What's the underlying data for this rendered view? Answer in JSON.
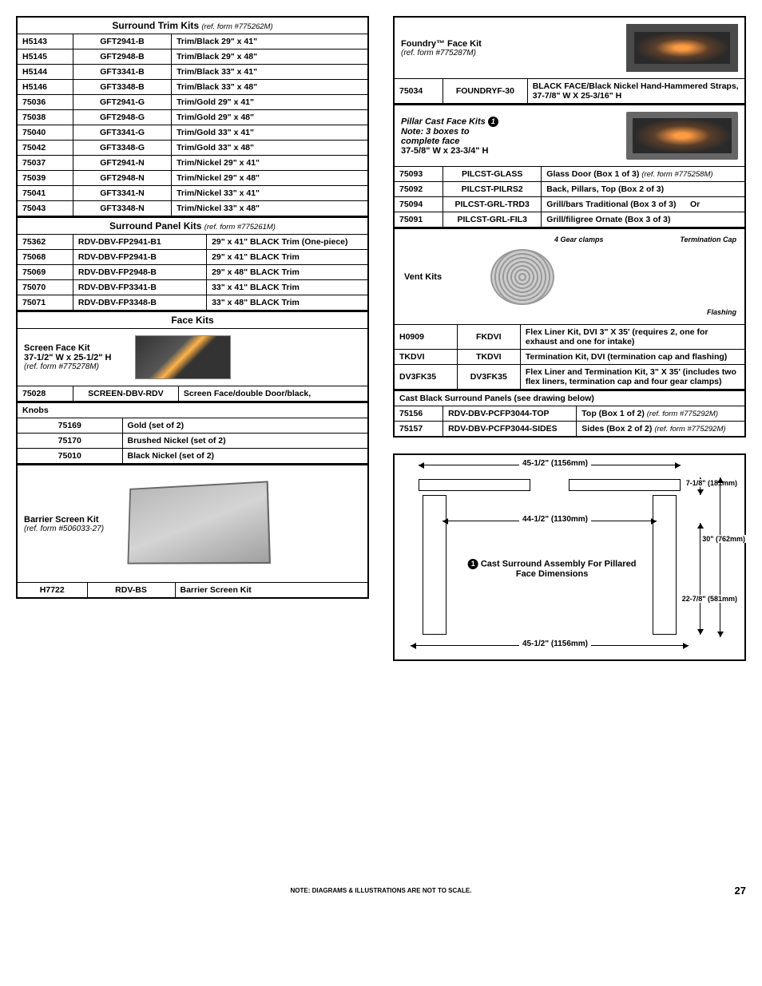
{
  "left": {
    "surround_trim": {
      "header": "Surround Trim Kits",
      "header_ref": "(ref. form #775262M)",
      "rows": [
        {
          "c0": "H5143",
          "c1": "GFT2941-B",
          "c2": "Trim/Black 29\" x 41\""
        },
        {
          "c0": "H5145",
          "c1": "GFT2948-B",
          "c2": "Trim/Black 29\" x 48\""
        },
        {
          "c0": "H5144",
          "c1": "GFT3341-B",
          "c2": "Trim/Black 33\" x 41\""
        },
        {
          "c0": "H5146",
          "c1": "GFT3348-B",
          "c2": "Trim/Black 33\" x 48\""
        },
        {
          "c0": "75036",
          "c1": "GFT2941-G",
          "c2": "Trim/Gold 29\" x 41\""
        },
        {
          "c0": "75038",
          "c1": "GFT2948-G",
          "c2": "Trim/Gold 29\" x 48\""
        },
        {
          "c0": "75040",
          "c1": "GFT3341-G",
          "c2": "Trim/Gold 33\" x 41\""
        },
        {
          "c0": "75042",
          "c1": "GFT3348-G",
          "c2": "Trim/Gold 33\" x 48\""
        },
        {
          "c0": "75037",
          "c1": "GFT2941-N",
          "c2": "Trim/Nickel 29\" x 41\""
        },
        {
          "c0": "75039",
          "c1": "GFT2948-N",
          "c2": "Trim/Nickel 29\" x 48\""
        },
        {
          "c0": "75041",
          "c1": "GFT3341-N",
          "c2": "Trim/Nickel 33\" x 41\""
        },
        {
          "c0": "75043",
          "c1": "GFT3348-N",
          "c2": "Trim/Nickel 33\" x 48\""
        }
      ]
    },
    "surround_panel": {
      "header": "Surround Panel Kits",
      "header_ref": "(ref. form #775261M)",
      "rows": [
        {
          "c0": "75362",
          "c1": "RDV-DBV-FP2941-B1",
          "c2": "29\" x 41\" BLACK Trim (One-piece)"
        },
        {
          "c0": "75068",
          "c1": "RDV-DBV-FP2941-B",
          "c2": "29\" x 41\" BLACK Trim"
        },
        {
          "c0": "75069",
          "c1": "RDV-DBV-FP2948-B",
          "c2": "29\" x 48\" BLACK Trim"
        },
        {
          "c0": "75070",
          "c1": "RDV-DBV-FP3341-B",
          "c2": "33\" x 41\" BLACK Trim"
        },
        {
          "c0": "75071",
          "c1": "RDV-DBV-FP3348-B",
          "c2": "33\" x 48\" BLACK Trim"
        }
      ]
    },
    "face_kits": {
      "header": "Face Kits",
      "screen_title": "Screen Face Kit",
      "screen_dims": "37-1/2\" W x 25-1/2\" H",
      "screen_ref": "(ref. form #775278M)",
      "row": {
        "c0": "75028",
        "c1": "SCREEN-DBV-RDV",
        "c2": "Screen Face/double Door/black,"
      }
    },
    "knobs": {
      "header": "Knobs",
      "rows": [
        {
          "c0": "75169",
          "c1": "Gold (set of 2)"
        },
        {
          "c0": "75170",
          "c1": "Brushed Nickel (set of 2)"
        },
        {
          "c0": "75010",
          "c1": "Black Nickel (set of 2)"
        }
      ]
    },
    "barrier": {
      "title": "Barrier Screen Kit",
      "ref": "(ref. form #506033-27)",
      "row": {
        "c0": "H7722",
        "c1": "RDV-BS",
        "c2": "Barrier Screen Kit"
      }
    }
  },
  "right": {
    "foundry": {
      "title": "Foundry™ Face Kit",
      "ref": "(ref. form #775287M)",
      "row": {
        "c0": "75034",
        "c1": "FOUNDRYF-30",
        "c2": "BLACK FACE/Black Nickel Hand-Hammered Straps, 37-7/8\" W X 25-3/16\" H"
      }
    },
    "pillar": {
      "title_l1": "Pillar Cast Face Kits",
      "title_l2": "Note: 3 boxes to",
      "title_l3": "complete face",
      "title_l4": "37-5/8\" W x 23-3/4\" H",
      "rows": [
        {
          "c0": "75093",
          "c1": "PILCST-GLASS",
          "c2": "Glass Door (Box 1 of 3)",
          "ref": "(ref. form #775258M)"
        },
        {
          "c0": "75092",
          "c1": "PILCST-PILRS2",
          "c2": "Back, Pillars, Top (Box 2 of 3)",
          "ref": ""
        },
        {
          "c0": "75094",
          "c1": "PILCST-GRL-TRD3",
          "c2": "Grill/bars Traditional (Box 3 of 3)",
          "c3": "Or",
          "ref": ""
        },
        {
          "c0": "75091",
          "c1": "PILCST-GRL-FIL3",
          "c2": "Grill/filigree Ornate (Box 3 of 3)",
          "ref": ""
        }
      ]
    },
    "vent": {
      "title": "Vent Kits",
      "anno_clamps": "4 Gear clamps",
      "anno_cap": "Termination Cap",
      "anno_flash": "Flashing",
      "rows": [
        {
          "c0": "H0909",
          "c1": "FKDVI",
          "c2": "Flex Liner Kit, DVI 3\" X 35' (requires 2, one for exhaust and one for intake)"
        },
        {
          "c0": "TKDVI",
          "c1": "TKDVI",
          "c2": "Termination Kit, DVI (termination cap and flashing)"
        },
        {
          "c0": "DV3FK35",
          "c1": "DV3FK35",
          "c2": "Flex Liner and Termination Kit, 3\" X 35' (includes two flex liners, termination cap and four gear clamps)"
        }
      ]
    },
    "cast_black": {
      "header": "Cast Black Surround Panels (see drawing below)",
      "rows": [
        {
          "c0": "75156",
          "c1": "RDV-DBV-PCFP3044-TOP",
          "c2": "Top (Box 1 of 2)",
          "ref": "(ref. form #775292M)"
        },
        {
          "c0": "75157",
          "c1": "RDV-DBV-PCFP3044-SIDES",
          "c2": "Sides (Box 2 of 2)",
          "ref": "(ref. form #775292M)"
        }
      ]
    },
    "diagram": {
      "d1": "45-1/2\" (1156mm)",
      "d2": "44-1/2\" (1130mm)",
      "d3": "45-1/2\" (1156mm)",
      "d4": "7-1/8\" (181mm)",
      "d5": "30\" (762mm)",
      "d6": "22-7/8\" (581mm)",
      "caption": "Cast Surround Assembly For Pillared Face Dimensions"
    }
  },
  "footer": {
    "note": "NOTE: DIAGRAMS & ILLUSTRATIONS ARE NOT TO SCALE.",
    "page": "27"
  }
}
